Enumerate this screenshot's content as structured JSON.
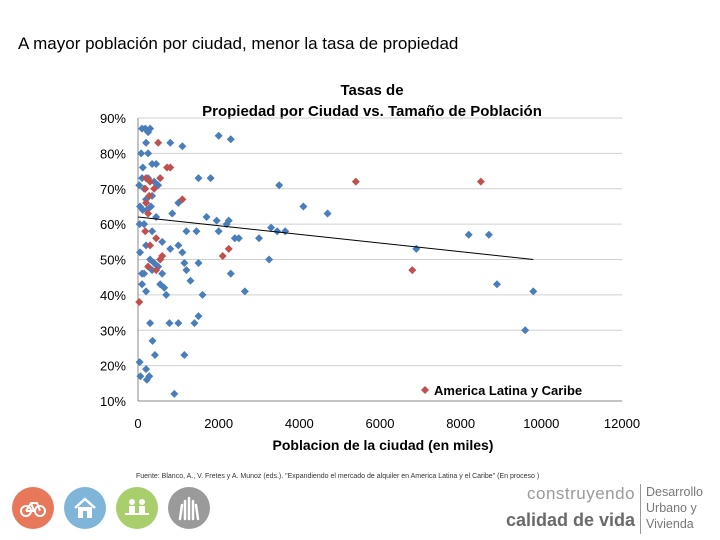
{
  "slide": {
    "title": "A mayor población por ciudad, menor la tasa de propiedad",
    "source": "Fuente: Blanco, A., V. Fretes y A. Munoz (eds.). \"Expandiendo el mercado de alquiler en America Latina y el Caribe\" (En proceso )"
  },
  "footer": {
    "brand_line1": "construyendo",
    "brand_line2": "calidad de vida",
    "brand_right": [
      "Desarrollo",
      "Urbano y",
      "Vivienda"
    ],
    "icons": [
      {
        "name": "bicycle-icon",
        "color": "#e8785a"
      },
      {
        "name": "house-icon",
        "color": "#7fb5d8"
      },
      {
        "name": "people-bench-icon",
        "color": "#a8cf6b"
      },
      {
        "name": "raised-hands-icon",
        "color": "#9a9a9a"
      }
    ]
  },
  "chart_data": {
    "type": "scatter",
    "title": "Tasas de Propiedad por Ciudad vs. Tamaño de Población",
    "xlabel": "Poblacion de la ciudad (en miles)",
    "ylabel": "",
    "xlim": [
      0,
      12000
    ],
    "ylim": [
      0.1,
      0.9
    ],
    "xticks": [
      "0",
      "2000",
      "4000",
      "6000",
      "8000",
      "10000",
      "12000"
    ],
    "yticks": [
      "10%",
      "20%",
      "30%",
      "40%",
      "50%",
      "60%",
      "70%",
      "80%",
      "90%"
    ],
    "grid": true,
    "legend_position": "bottom-right",
    "series": [
      {
        "name": "",
        "color": "#4a7ebb",
        "marker": "diamond",
        "points": [
          [
            40,
            0.21
          ],
          [
            60,
            0.17
          ],
          [
            200,
            0.19
          ],
          [
            220,
            0.16
          ],
          [
            280,
            0.17
          ],
          [
            300,
            0.32
          ],
          [
            360,
            0.27
          ],
          [
            420,
            0.23
          ],
          [
            700,
            0.4
          ],
          [
            780,
            0.32
          ],
          [
            1000,
            0.32
          ],
          [
            1150,
            0.23
          ],
          [
            1400,
            0.32
          ],
          [
            1500,
            0.34
          ],
          [
            1600,
            0.4
          ],
          [
            2000,
            0.85
          ],
          [
            2300,
            0.84
          ],
          [
            900,
            0.12
          ],
          [
            100,
            0.87
          ],
          [
            180,
            0.87
          ],
          [
            250,
            0.86
          ],
          [
            300,
            0.87
          ],
          [
            200,
            0.83
          ],
          [
            80,
            0.8
          ],
          [
            250,
            0.8
          ],
          [
            120,
            0.76
          ],
          [
            350,
            0.77
          ],
          [
            450,
            0.77
          ],
          [
            800,
            0.83
          ],
          [
            1100,
            0.82
          ],
          [
            100,
            0.73
          ],
          [
            250,
            0.73
          ],
          [
            400,
            0.72
          ],
          [
            500,
            0.71
          ],
          [
            30,
            0.71
          ],
          [
            150,
            0.7
          ],
          [
            200,
            0.67
          ],
          [
            350,
            0.68
          ],
          [
            50,
            0.65
          ],
          [
            120,
            0.64
          ],
          [
            220,
            0.64
          ],
          [
            320,
            0.65
          ],
          [
            450,
            0.62
          ],
          [
            850,
            0.63
          ],
          [
            1000,
            0.66
          ],
          [
            1500,
            0.73
          ],
          [
            1800,
            0.73
          ],
          [
            1700,
            0.62
          ],
          [
            1950,
            0.61
          ],
          [
            2200,
            0.6
          ],
          [
            2250,
            0.61
          ],
          [
            1200,
            0.58
          ],
          [
            1450,
            0.58
          ],
          [
            40,
            0.6
          ],
          [
            150,
            0.6
          ],
          [
            350,
            0.58
          ],
          [
            600,
            0.55
          ],
          [
            800,
            0.53
          ],
          [
            1000,
            0.54
          ],
          [
            1100,
            0.52
          ],
          [
            2000,
            0.58
          ],
          [
            2400,
            0.56
          ],
          [
            2500,
            0.56
          ],
          [
            3000,
            0.56
          ],
          [
            3300,
            0.59
          ],
          [
            3450,
            0.58
          ],
          [
            3650,
            0.58
          ],
          [
            3500,
            0.71
          ],
          [
            4100,
            0.65
          ],
          [
            4700,
            0.63
          ],
          [
            50,
            0.52
          ],
          [
            200,
            0.54
          ],
          [
            300,
            0.5
          ],
          [
            400,
            0.49
          ],
          [
            500,
            0.48
          ],
          [
            100,
            0.46
          ],
          [
            150,
            0.46
          ],
          [
            350,
            0.47
          ],
          [
            600,
            0.46
          ],
          [
            1150,
            0.49
          ],
          [
            1200,
            0.47
          ],
          [
            1300,
            0.44
          ],
          [
            1500,
            0.49
          ],
          [
            2300,
            0.46
          ],
          [
            2650,
            0.41
          ],
          [
            3250,
            0.5
          ],
          [
            100,
            0.43
          ],
          [
            200,
            0.41
          ],
          [
            550,
            0.43
          ],
          [
            650,
            0.42
          ],
          [
            6900,
            0.53
          ],
          [
            8200,
            0.57
          ],
          [
            8700,
            0.57
          ],
          [
            8900,
            0.43
          ],
          [
            9600,
            0.3
          ],
          [
            9800,
            0.41
          ]
        ]
      },
      {
        "name": "America Latina y Caribe",
        "color": "#c0504d",
        "marker": "diamond",
        "points": [
          [
            500,
            0.83
          ],
          [
            720,
            0.76
          ],
          [
            800,
            0.76
          ],
          [
            200,
            0.73
          ],
          [
            300,
            0.72
          ],
          [
            550,
            0.73
          ],
          [
            180,
            0.7
          ],
          [
            280,
            0.68
          ],
          [
            400,
            0.7
          ],
          [
            200,
            0.66
          ],
          [
            250,
            0.63
          ],
          [
            1100,
            0.67
          ],
          [
            180,
            0.58
          ],
          [
            450,
            0.56
          ],
          [
            300,
            0.54
          ],
          [
            600,
            0.51
          ],
          [
            550,
            0.5
          ],
          [
            250,
            0.48
          ],
          [
            450,
            0.47
          ],
          [
            2100,
            0.51
          ],
          [
            2250,
            0.53
          ],
          [
            30,
            0.38
          ],
          [
            5400,
            0.72
          ],
          [
            8500,
            0.72
          ],
          [
            6800,
            0.47
          ]
        ]
      }
    ],
    "trendline": {
      "x": [
        0,
        9800
      ],
      "y": [
        0.62,
        0.5
      ],
      "color": "#000000"
    }
  }
}
